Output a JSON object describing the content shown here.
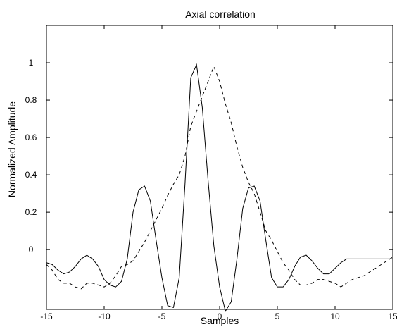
{
  "chart_data": {
    "type": "line",
    "title": "Axial correlation",
    "xlabel": "Samples",
    "ylabel": "Normalized Amplitude",
    "xlim": [
      -15,
      15
    ],
    "ylim": [
      -0.32,
      1.2
    ],
    "x_ticks": [
      -15,
      -10,
      -5,
      0,
      5,
      10,
      15
    ],
    "x_tick_labels": [
      "-15",
      "-10",
      "-5",
      "0",
      "5",
      "10",
      "15"
    ],
    "y_ticks": [
      0,
      0.2,
      0.4,
      0.6,
      0.8,
      1
    ],
    "y_tick_labels": [
      "0",
      "0.2",
      "0.4",
      "0.6",
      "0.8",
      "1"
    ],
    "grid": false,
    "series": [
      {
        "style": "solid",
        "color": "#000000",
        "x": [
          -15,
          -14.5,
          -14,
          -13.5,
          -13,
          -12.5,
          -12,
          -11.5,
          -11,
          -10.5,
          -10,
          -9.5,
          -9,
          -8.5,
          -8,
          -7.5,
          -7,
          -6.5,
          -6,
          -5.5,
          -5,
          -4.5,
          -4,
          -3.5,
          -3,
          -2.5,
          -2,
          -1.5,
          -1,
          -0.5,
          0,
          0.5,
          1,
          1.5,
          2,
          2.5,
          3,
          3.5,
          4,
          4.5,
          5,
          5.5,
          6,
          6.5,
          7,
          7.5,
          8,
          8.5,
          9,
          9.5,
          10,
          10.5,
          11,
          11.5,
          12,
          12.5,
          13,
          13.5,
          14,
          14.5,
          15
        ],
        "y": [
          -0.07,
          -0.08,
          -0.11,
          -0.13,
          -0.12,
          -0.09,
          -0.05,
          -0.03,
          -0.05,
          -0.09,
          -0.16,
          -0.19,
          -0.2,
          -0.17,
          -0.05,
          0.2,
          0.32,
          0.34,
          0.26,
          0.05,
          -0.15,
          -0.3,
          -0.31,
          -0.15,
          0.35,
          0.92,
          0.99,
          0.76,
          0.37,
          0.02,
          -0.2,
          -0.33,
          -0.28,
          -0.05,
          0.22,
          0.33,
          0.34,
          0.26,
          0.05,
          -0.15,
          -0.2,
          -0.2,
          -0.16,
          -0.09,
          -0.04,
          -0.03,
          -0.06,
          -0.1,
          -0.13,
          -0.13,
          -0.1,
          -0.07,
          -0.05,
          -0.05,
          -0.05,
          -0.05,
          -0.05,
          -0.05,
          -0.05,
          -0.05,
          -0.05
        ]
      },
      {
        "style": "dashed",
        "color": "#000000",
        "x": [
          -15,
          -14.5,
          -14,
          -13.5,
          -13,
          -12.5,
          -12,
          -11.5,
          -11,
          -10.5,
          -10,
          -9.5,
          -9,
          -8.5,
          -8,
          -7.5,
          -7,
          -6.5,
          -6,
          -5.5,
          -5,
          -4.5,
          -4,
          -3.5,
          -3,
          -2.5,
          -2,
          -1.5,
          -1,
          -0.5,
          0,
          0.5,
          1,
          1.5,
          2,
          2.5,
          3,
          3.5,
          4,
          4.5,
          5,
          5.5,
          6,
          6.5,
          7,
          7.5,
          8,
          8.5,
          9,
          9.5,
          10,
          10.5,
          11,
          11.5,
          12,
          12.5,
          13,
          13.5,
          14,
          14.5,
          15
        ],
        "y": [
          -0.08,
          -0.11,
          -0.16,
          -0.18,
          -0.18,
          -0.2,
          -0.21,
          -0.18,
          -0.18,
          -0.19,
          -0.2,
          -0.18,
          -0.14,
          -0.09,
          -0.08,
          -0.06,
          -0.01,
          0.04,
          0.1,
          0.16,
          0.22,
          0.29,
          0.35,
          0.4,
          0.5,
          0.66,
          0.74,
          0.82,
          0.9,
          0.98,
          0.9,
          0.78,
          0.68,
          0.55,
          0.44,
          0.36,
          0.3,
          0.2,
          0.1,
          0.05,
          -0.01,
          -0.07,
          -0.11,
          -0.16,
          -0.19,
          -0.19,
          -0.18,
          -0.16,
          -0.16,
          -0.17,
          -0.18,
          -0.2,
          -0.18,
          -0.16,
          -0.15,
          -0.14,
          -0.12,
          -0.1,
          -0.08,
          -0.06,
          -0.04
        ]
      }
    ]
  }
}
